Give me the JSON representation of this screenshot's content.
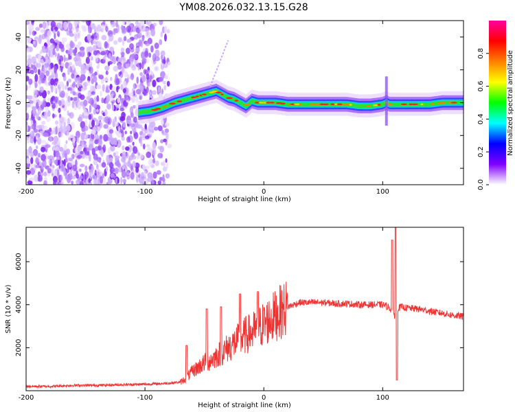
{
  "title": "YM08.2026.032.13.15.G28",
  "chart_data": [
    {
      "type": "heatmap",
      "name": "spectrogram",
      "xlabel": "Height of straight line (km)",
      "ylabel": "Frequency (Hz)",
      "xlim": [
        -200,
        168
      ],
      "ylim": [
        -50,
        50
      ],
      "x_ticks": [
        -200,
        -100,
        0,
        100
      ],
      "x_tick_labels": [
        "-200",
        "-100",
        "0",
        "100"
      ],
      "y_ticks": [
        -40,
        -20,
        0,
        20,
        40
      ],
      "y_tick_labels": [
        "-40",
        "-20",
        "0",
        "20",
        "40"
      ],
      "noise_region_x": [
        -200,
        -80
      ],
      "signal_track": {
        "x": [
          -105,
          -95,
          -85,
          -75,
          -65,
          -55,
          -45,
          -40,
          -35,
          -30,
          -25,
          -20,
          -15,
          -10,
          -5,
          0,
          10,
          20,
          30,
          40,
          50,
          60,
          70,
          80,
          90,
          100,
          103,
          106,
          110,
          120,
          130,
          140,
          150,
          160,
          168
        ],
        "y": [
          -6,
          -5,
          -3,
          0,
          2,
          4,
          6,
          7,
          5,
          3,
          2,
          0,
          -2,
          1,
          0,
          0,
          0,
          -1,
          -1,
          -1,
          -1,
          -1,
          -1,
          -2,
          -2,
          -1,
          0,
          -1,
          -1,
          -1,
          -1,
          -1,
          0,
          0,
          0
        ]
      },
      "colorbar": {
        "label": "Normalized spectral amplitude",
        "range": [
          0,
          1
        ],
        "ticks": [
          0,
          0.2,
          0.4,
          0.6,
          0.8
        ],
        "tick_labels": [
          "0.0",
          "0.2",
          "0.4",
          "0.6",
          "0.8"
        ],
        "colors": [
          "#ffffff",
          "#8000ff",
          "#0000ff",
          "#00ffff",
          "#00ff00",
          "#ffff00",
          "#ff8000",
          "#ff0000",
          "#ff00a0"
        ]
      }
    },
    {
      "type": "line",
      "name": "snr",
      "xlabel": "Height of straight line (km)",
      "ylabel": "SNR (10 * v/v)",
      "xlim": [
        -200,
        168
      ],
      "ylim": [
        0,
        7600
      ],
      "x_ticks": [
        -200,
        -100,
        0,
        100
      ],
      "x_tick_labels": [
        "-200",
        "-100",
        "0",
        "100"
      ],
      "y_ticks": [
        2000,
        4000,
        6000
      ],
      "y_tick_labels": [
        "2000",
        "4000",
        "6000"
      ],
      "color": "#ee3333",
      "series": [
        {
          "name": "SNR",
          "x": [
            -200,
            -180,
            -160,
            -140,
            -120,
            -100,
            -90,
            -80,
            -70,
            -65,
            -60,
            -55,
            -50,
            -45,
            -40,
            -35,
            -30,
            -25,
            -20,
            -15,
            -10,
            -5,
            0,
            5,
            10,
            15,
            20,
            25,
            30,
            40,
            50,
            60,
            70,
            80,
            90,
            100,
            105,
            108,
            110,
            112,
            115,
            120,
            130,
            140,
            150,
            160,
            168
          ],
          "y": [
            200,
            200,
            250,
            250,
            280,
            300,
            320,
            350,
            400,
            600,
            900,
            1100,
            1300,
            1400,
            1600,
            1800,
            2000,
            2200,
            2400,
            2600,
            2700,
            2900,
            3100,
            3300,
            3500,
            3700,
            3900,
            4000,
            4100,
            4100,
            4100,
            4050,
            4050,
            4000,
            4000,
            4000,
            3900,
            3700,
            3500,
            3800,
            3900,
            3850,
            3800,
            3700,
            3600,
            3500,
            3450
          ]
        }
      ],
      "spikes": [
        {
          "x": -65,
          "y": 2100
        },
        {
          "x": -48,
          "y": 3800
        },
        {
          "x": -36,
          "y": 3900
        },
        {
          "x": -20,
          "y": 4500
        },
        {
          "x": -5,
          "y": 4600
        },
        {
          "x": 108,
          "y": 7000
        },
        {
          "x": 111,
          "y": 7600
        },
        {
          "x": 112,
          "y": 500
        }
      ]
    }
  ]
}
